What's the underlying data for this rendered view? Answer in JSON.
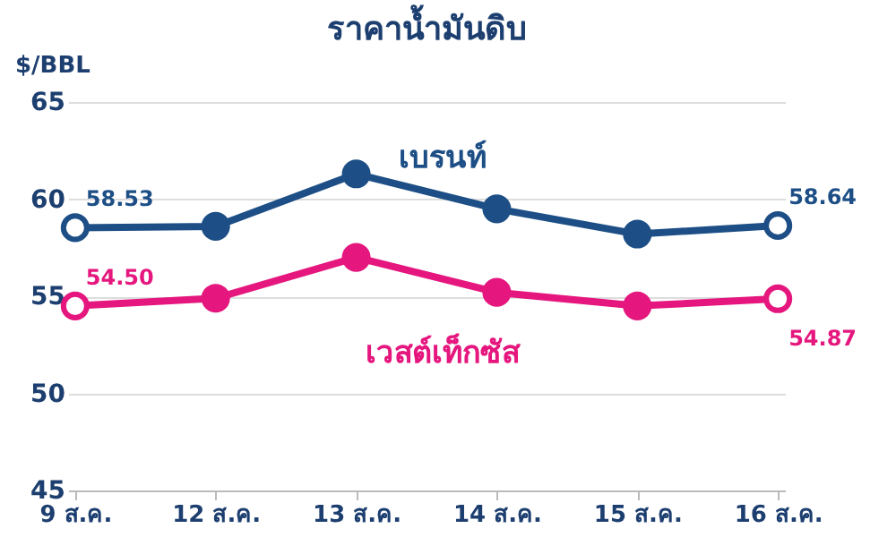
{
  "chart_data": {
    "type": "line",
    "title": "ราคาน้ำมันดิบ",
    "ylabel": "$/BBL",
    "categories": [
      "9 ส.ค.",
      "12 ส.ค.",
      "13 ส.ค.",
      "14 ส.ค.",
      "15 ส.ค.",
      "16 ส.ค."
    ],
    "series": [
      {
        "name": "เบรนท์",
        "color": "#1d4f86",
        "values": [
          58.53,
          58.6,
          61.3,
          59.5,
          58.2,
          58.64
        ],
        "value_labels": [
          "58.53",
          null,
          null,
          null,
          null,
          "58.64"
        ]
      },
      {
        "name": "เวสต์เท็กซัส",
        "color": "#e5177e",
        "values": [
          54.5,
          54.9,
          57.0,
          55.2,
          54.5,
          54.87
        ],
        "value_labels": [
          "54.50",
          null,
          null,
          null,
          null,
          "54.87"
        ]
      }
    ],
    "ylim": [
      45,
      65
    ],
    "yticks": [
      45,
      50,
      55,
      60,
      65
    ],
    "grid": "y",
    "marker": "circle",
    "line_style": "solid"
  }
}
